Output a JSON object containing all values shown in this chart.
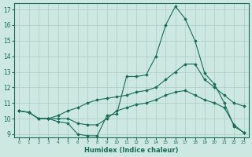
{
  "xlabel": "Humidex (Indice chaleur)",
  "bg_color": "#cce8e0",
  "grid_color": "#aaccc4",
  "line_color": "#1a6b5a",
  "xlim": [
    -0.5,
    23.5
  ],
  "ylim": [
    8.8,
    17.4
  ],
  "xticks": [
    0,
    1,
    2,
    3,
    4,
    5,
    6,
    7,
    8,
    9,
    10,
    11,
    12,
    13,
    14,
    15,
    16,
    17,
    18,
    19,
    20,
    21,
    22,
    23
  ],
  "yticks": [
    9,
    10,
    11,
    12,
    13,
    14,
    15,
    16,
    17
  ],
  "lines": [
    {
      "x": [
        0,
        1,
        2,
        3,
        4,
        5,
        6,
        7,
        8,
        9,
        10,
        11,
        12,
        13,
        14,
        15,
        16,
        17,
        18,
        19,
        20,
        21,
        22,
        23
      ],
      "y": [
        10.5,
        10.4,
        10.0,
        10.0,
        9.8,
        9.7,
        9.0,
        8.9,
        8.9,
        10.2,
        10.3,
        12.7,
        12.7,
        12.8,
        14.0,
        16.0,
        17.2,
        16.4,
        15.0,
        12.9,
        12.2,
        11.0,
        9.5,
        9.1
      ]
    },
    {
      "x": [
        0,
        1,
        2,
        3,
        4,
        5,
        6,
        7,
        8,
        9,
        10,
        11,
        12,
        13,
        14,
        15,
        16,
        17,
        18,
        19,
        20,
        21,
        22,
        23
      ],
      "y": [
        10.5,
        10.4,
        10.0,
        10.0,
        10.2,
        10.5,
        10.7,
        11.0,
        11.2,
        11.3,
        11.4,
        11.5,
        11.7,
        11.8,
        12.0,
        12.5,
        13.0,
        13.5,
        13.5,
        12.5,
        12.0,
        11.5,
        11.0,
        10.8
      ]
    },
    {
      "x": [
        0,
        1,
        2,
        3,
        4,
        5,
        6,
        7,
        8,
        9,
        10,
        11,
        12,
        13,
        14,
        15,
        16,
        17,
        18,
        19,
        20,
        21,
        22,
        23
      ],
      "y": [
        10.5,
        10.4,
        10.0,
        10.0,
        10.0,
        10.0,
        9.7,
        9.6,
        9.6,
        10.0,
        10.5,
        10.7,
        10.9,
        11.0,
        11.2,
        11.5,
        11.7,
        11.8,
        11.5,
        11.2,
        11.0,
        10.7,
        9.6,
        9.1
      ]
    }
  ]
}
